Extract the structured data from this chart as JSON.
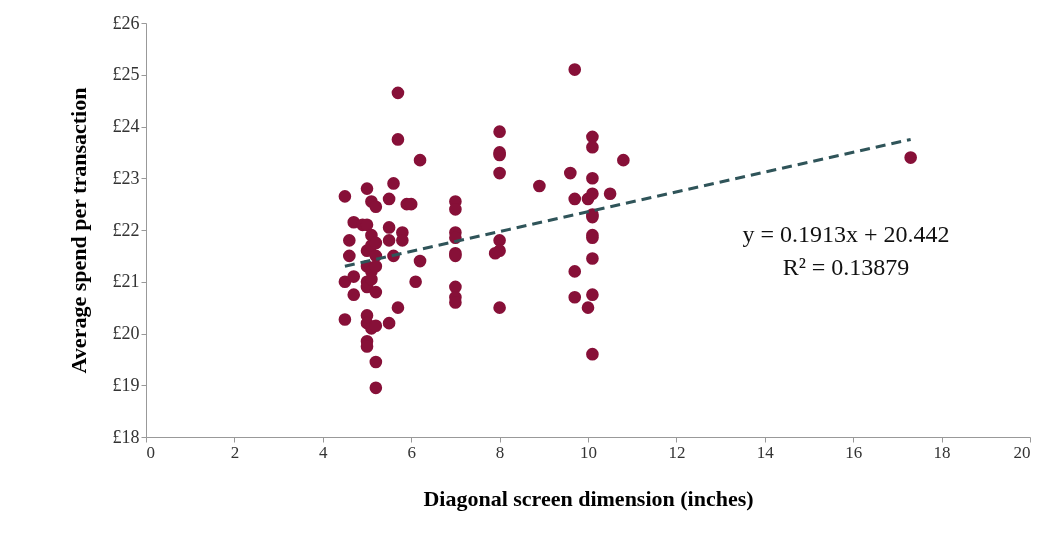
{
  "chart_data": {
    "type": "scatter",
    "xlabel": "Diagonal screen dimension (inches)",
    "ylabel": "Average spend per transaction",
    "xlim": [
      0,
      20
    ],
    "xticks": [
      0,
      2,
      4,
      6,
      8,
      10,
      12,
      14,
      16,
      18,
      20
    ],
    "ylim": [
      18,
      26
    ],
    "yticks": [
      {
        "value": 18,
        "label": "£18"
      },
      {
        "value": 19,
        "label": "£19"
      },
      {
        "value": 20,
        "label": "£20"
      },
      {
        "value": 21,
        "label": "£21"
      },
      {
        "value": 22,
        "label": "£22"
      },
      {
        "value": 23,
        "label": "£23"
      },
      {
        "value": 24,
        "label": "£24"
      },
      {
        "value": 25,
        "label": "£25"
      },
      {
        "value": 26,
        "label": "£26"
      }
    ],
    "grid": false,
    "annotations": [
      "y = 0.1913x + 20.442",
      "R² = 0.13879"
    ],
    "series": [
      {
        "marker": "circle",
        "color": "#871038",
        "x": [
          4.5,
          4.5,
          4.5,
          4.6,
          4.6,
          4.7,
          4.7,
          4.7,
          4.9,
          5.0,
          5.0,
          5.0,
          5.0,
          5.0,
          5.0,
          5.0,
          5.0,
          5.0,
          5.0,
          5.1,
          5.1,
          5.1,
          5.1,
          5.1,
          5.1,
          5.2,
          5.2,
          5.2,
          5.2,
          5.2,
          5.2,
          5.2,
          5.2,
          5.5,
          5.5,
          5.5,
          5.5,
          5.6,
          5.6,
          5.7,
          5.7,
          5.7,
          5.8,
          5.8,
          5.9,
          6.0,
          6.1,
          6.2,
          6.2,
          7.0,
          7.0,
          7.0,
          7.0,
          7.0,
          7.0,
          7.0,
          7.0,
          7.0,
          8.0,
          8.0,
          8.0,
          8.0,
          8.0,
          8.0,
          8.0,
          7.9,
          8.9,
          9.6,
          9.7,
          9.7,
          9.7,
          9.7,
          10.0,
          10.0,
          10.1,
          10.1,
          10.1,
          10.1,
          10.1,
          10.1,
          10.1,
          10.1,
          10.1,
          10.1,
          10.1,
          10.5,
          10.8,
          17.3
        ],
        "values": [
          22.65,
          21.0,
          20.27,
          21.8,
          21.5,
          22.15,
          21.1,
          20.75,
          22.1,
          22.8,
          22.1,
          21.6,
          21.3,
          21.0,
          20.9,
          20.35,
          20.2,
          19.85,
          19.75,
          22.55,
          21.9,
          21.7,
          21.2,
          21.05,
          20.1,
          22.45,
          21.75,
          21.5,
          21.3,
          20.8,
          20.15,
          19.45,
          18.95,
          22.6,
          22.05,
          21.8,
          20.2,
          22.9,
          21.5,
          24.65,
          23.75,
          20.5,
          21.95,
          21.8,
          22.5,
          22.5,
          21.0,
          23.35,
          21.4,
          22.55,
          22.4,
          21.95,
          21.85,
          21.55,
          21.5,
          20.9,
          20.7,
          20.6,
          23.9,
          23.5,
          23.45,
          23.1,
          21.8,
          21.6,
          20.5,
          21.55,
          22.85,
          23.1,
          25.1,
          22.6,
          21.2,
          20.7,
          22.6,
          20.5,
          23.8,
          23.6,
          23.0,
          22.7,
          22.3,
          22.25,
          21.9,
          21.85,
          21.45,
          20.75,
          19.6,
          22.7,
          23.35,
          23.4
        ]
      },
      {
        "type": "line",
        "color": "#2f5459",
        "line_style": "dashed",
        "marker": "none",
        "x": [
          4.5,
          17.3
        ],
        "values": [
          21.3,
          23.75
        ]
      }
    ]
  }
}
